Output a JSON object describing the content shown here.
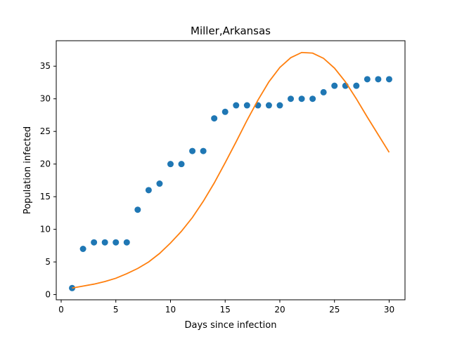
{
  "chart_data": {
    "type": "scatter",
    "title": "Miller,Arkansas",
    "xlabel": "Days since infection",
    "ylabel": "Population infected",
    "xlim": [
      -0.45,
      31.45
    ],
    "ylim": [
      -0.8,
      38.9
    ],
    "xticks": [
      0,
      5,
      10,
      15,
      20,
      25,
      30
    ],
    "yticks": [
      0,
      5,
      10,
      15,
      20,
      25,
      30,
      35
    ],
    "grid": false,
    "series": [
      {
        "kind": "scatter",
        "color": "#1f77b4",
        "x": [
          1,
          2,
          3,
          4,
          5,
          6,
          7,
          8,
          9,
          10,
          11,
          12,
          13,
          14,
          15,
          16,
          17,
          18,
          19,
          20,
          21,
          22,
          23,
          24,
          25,
          26,
          27,
          28,
          29,
          30
        ],
        "y": [
          1,
          7,
          8,
          8,
          8,
          8,
          13,
          16,
          17,
          20,
          20,
          22,
          22,
          27,
          28,
          29,
          29,
          29,
          29,
          29,
          30,
          30,
          30,
          31,
          32,
          32,
          32,
          33,
          33,
          33
        ]
      },
      {
        "kind": "line",
        "color": "#ff7f0e",
        "x": [
          1,
          2,
          3,
          4,
          5,
          6,
          7,
          8,
          9,
          10,
          11,
          12,
          13,
          14,
          15,
          16,
          17,
          18,
          19,
          20,
          21,
          22,
          23,
          24,
          25,
          26,
          27,
          28,
          29,
          30
        ],
        "y": [
          1.0,
          1.3,
          1.6,
          2.0,
          2.5,
          3.2,
          4.0,
          5.0,
          6.3,
          7.9,
          9.7,
          11.8,
          14.3,
          17.1,
          20.2,
          23.4,
          26.7,
          29.8,
          32.6,
          34.8,
          36.3,
          37.1,
          37.0,
          36.2,
          34.7,
          32.6,
          30.0,
          27.2,
          24.5,
          21.8
        ]
      }
    ]
  }
}
